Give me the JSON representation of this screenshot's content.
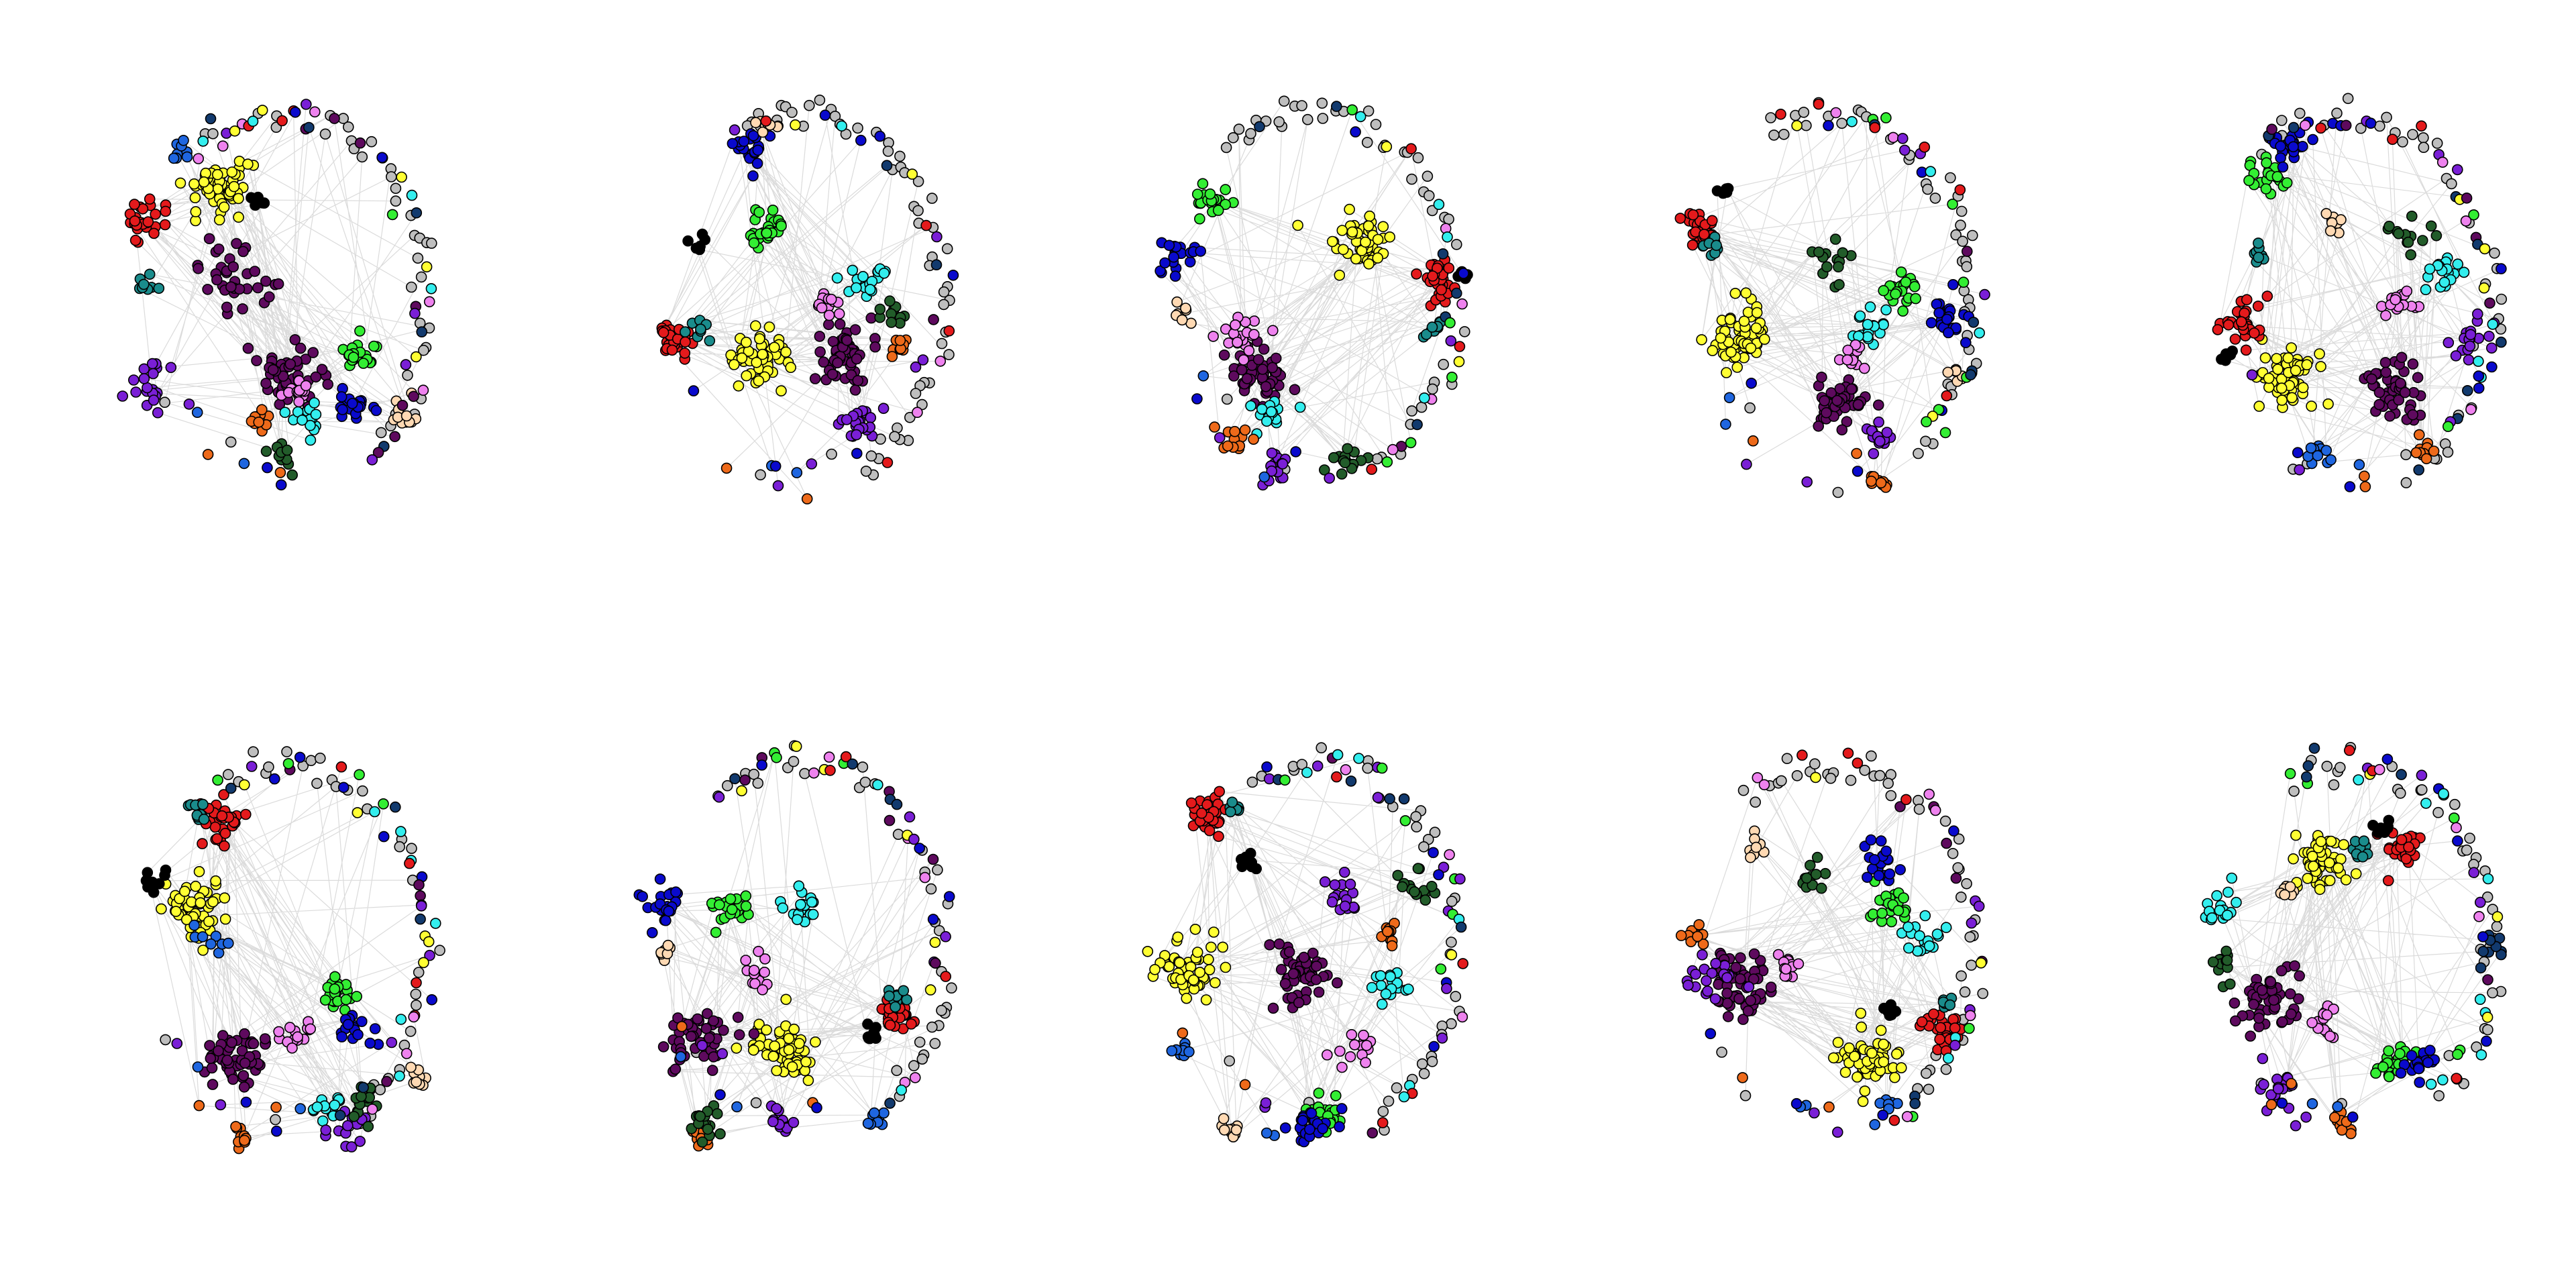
{
  "figure": {
    "description_free": true,
    "panel_count": 10,
    "rows": 2,
    "columns": 5,
    "background": "#ffffff",
    "edge_color": "#bdbdbd",
    "node_outline": "#000000"
  },
  "palette": {
    "yellow": "#ffff33",
    "red": "#e41a1c",
    "dark_purple": "#5e0a5e",
    "green": "#33ee33",
    "blue": "#0a0acd",
    "cyan": "#33eeee",
    "violet": "#7a1fd6",
    "pink": "#ee82ee",
    "orange": "#ee6a1a",
    "dark_green": "#225c2a",
    "teal": "#1a8c8c",
    "black": "#000000",
    "peach": "#ffd9b3",
    "navy": "#123a6e",
    "azure": "#1f66e0",
    "gray": "#bebebe"
  },
  "panels": [
    {
      "index": 1,
      "communities": [
        "yellow",
        "red",
        "dark_purple",
        "green",
        "blue",
        "cyan",
        "violet",
        "pink",
        "orange",
        "dark_green",
        "teal",
        "black",
        "peach",
        "azure",
        "navy",
        "gray"
      ]
    },
    {
      "index": 2,
      "communities": [
        "yellow",
        "red",
        "dark_purple",
        "green",
        "blue",
        "cyan",
        "violet",
        "pink",
        "orange",
        "dark_green",
        "teal",
        "black",
        "peach",
        "navy",
        "gray"
      ]
    },
    {
      "index": 3,
      "communities": [
        "yellow",
        "red",
        "dark_purple",
        "green",
        "blue",
        "cyan",
        "violet",
        "pink",
        "orange",
        "dark_green",
        "teal",
        "black",
        "peach",
        "navy",
        "gray"
      ]
    },
    {
      "index": 4,
      "communities": [
        "yellow",
        "red",
        "dark_purple",
        "green",
        "blue",
        "cyan",
        "violet",
        "pink",
        "orange",
        "dark_green",
        "teal",
        "black",
        "peach",
        "navy",
        "gray"
      ]
    },
    {
      "index": 5,
      "communities": [
        "yellow",
        "red",
        "dark_purple",
        "green",
        "blue",
        "cyan",
        "violet",
        "pink",
        "orange",
        "dark_green",
        "teal",
        "black",
        "peach",
        "azure",
        "navy",
        "gray"
      ]
    },
    {
      "index": 6,
      "communities": [
        "yellow",
        "red",
        "dark_purple",
        "green",
        "blue",
        "cyan",
        "violet",
        "pink",
        "orange",
        "dark_green",
        "teal",
        "black",
        "peach",
        "navy",
        "gray"
      ]
    },
    {
      "index": 7,
      "communities": [
        "yellow",
        "red",
        "dark_purple",
        "green",
        "blue",
        "cyan",
        "violet",
        "pink",
        "orange",
        "dark_green",
        "teal",
        "black",
        "peach",
        "azure",
        "navy",
        "gray"
      ]
    },
    {
      "index": 8,
      "communities": [
        "yellow",
        "red",
        "dark_purple",
        "green",
        "blue",
        "cyan",
        "violet",
        "pink",
        "orange",
        "dark_green",
        "teal",
        "black",
        "peach",
        "azure",
        "navy",
        "gray"
      ]
    },
    {
      "index": 9,
      "communities": [
        "yellow",
        "red",
        "dark_purple",
        "green",
        "blue",
        "cyan",
        "violet",
        "pink",
        "orange",
        "dark_green",
        "teal",
        "black",
        "peach",
        "azure",
        "navy",
        "gray"
      ]
    },
    {
      "index": 10,
      "communities": [
        "yellow",
        "red",
        "dark_purple",
        "green",
        "blue",
        "cyan",
        "violet",
        "pink",
        "orange",
        "dark_green",
        "teal",
        "black",
        "peach",
        "navy",
        "gray"
      ]
    }
  ]
}
